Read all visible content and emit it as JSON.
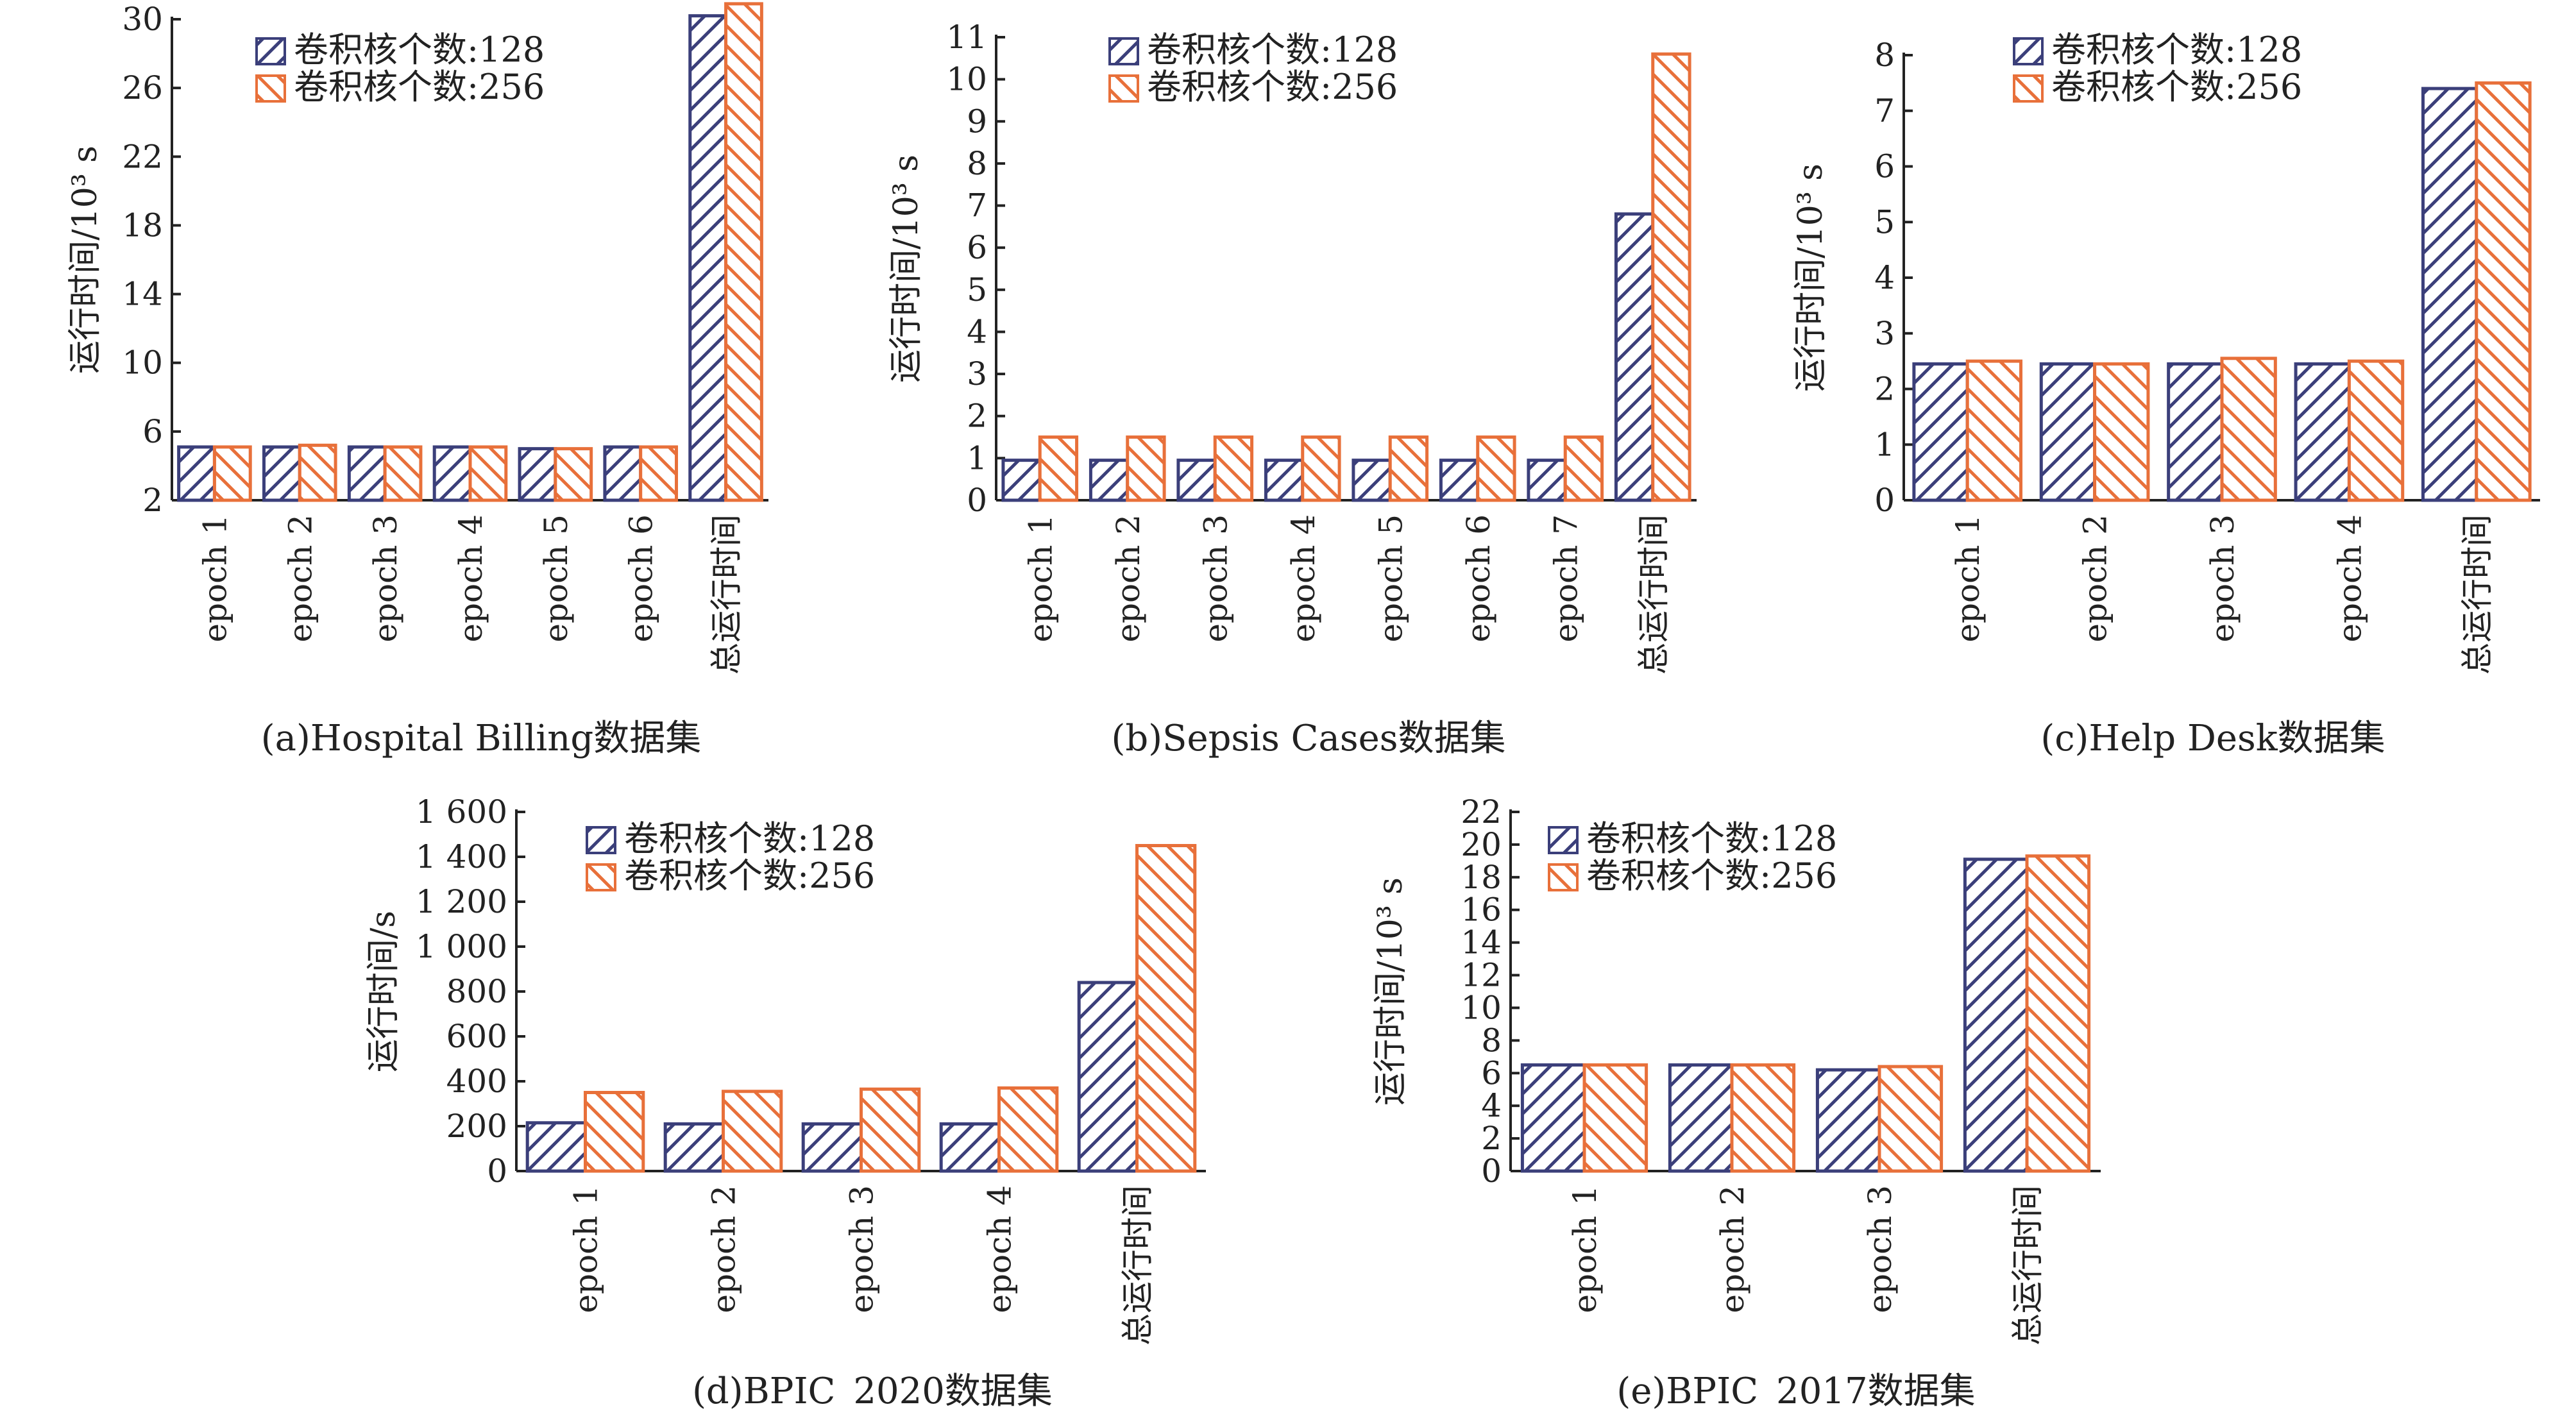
{
  "colors": {
    "series_a": "#3b3f7a",
    "series_b": "#e8703a"
  },
  "chart_data": [
    {
      "type": "bar",
      "caption": "(a)Hospital Billing数据集",
      "ylabel": "运行时间/10³ s",
      "ylim": [
        2,
        30
      ],
      "yticks": [
        2,
        6,
        10,
        14,
        18,
        22,
        26,
        30
      ],
      "ytick_labels": [
        "2",
        "6",
        "10",
        "14",
        "18",
        "22",
        "26",
        "30"
      ],
      "categories": [
        "epoch 1",
        "epoch 2",
        "epoch 3",
        "epoch 4",
        "epoch 5",
        "epoch 6",
        "总运行时间"
      ],
      "series": [
        {
          "name": "卷积核个数:128",
          "values": [
            5.1,
            5.1,
            5.1,
            5.1,
            5.0,
            5.1,
            30.2
          ]
        },
        {
          "name": "卷积核个数:256",
          "values": [
            5.1,
            5.2,
            5.1,
            5.1,
            5.0,
            5.1,
            30.9
          ]
        }
      ],
      "legend": "top-left",
      "grid": false
    },
    {
      "type": "bar",
      "caption": "(b)Sepsis Cases数据集",
      "ylabel": "运行时间/10³ s",
      "ylim": [
        0,
        11
      ],
      "yticks": [
        0,
        1,
        2,
        3,
        4,
        5,
        6,
        7,
        8,
        9,
        10,
        11
      ],
      "ytick_labels": [
        "0",
        "1",
        "2",
        "3",
        "4",
        "5",
        "6",
        "7",
        "8",
        "9",
        "10",
        "11"
      ],
      "categories": [
        "epoch 1",
        "epoch 2",
        "epoch 3",
        "epoch 4",
        "epoch 5",
        "epoch 6",
        "epoch 7",
        "总运行时间"
      ],
      "series": [
        {
          "name": "卷积核个数:128",
          "values": [
            0.95,
            0.95,
            0.95,
            0.95,
            0.95,
            0.95,
            0.95,
            6.8
          ]
        },
        {
          "name": "卷积核个数:256",
          "values": [
            1.5,
            1.5,
            1.5,
            1.5,
            1.5,
            1.5,
            1.5,
            10.6
          ]
        }
      ],
      "legend": "top-center",
      "grid": false
    },
    {
      "type": "bar",
      "caption": "(c)Help Desk数据集",
      "ylabel": "运行时间/10³ s",
      "ylim": [
        0,
        8
      ],
      "yticks": [
        0,
        1,
        2,
        3,
        4,
        5,
        6,
        7,
        8
      ],
      "ytick_labels": [
        "0",
        "1",
        "2",
        "3",
        "4",
        "5",
        "6",
        "7",
        "8"
      ],
      "categories": [
        "epoch 1",
        "epoch 2",
        "epoch 3",
        "epoch 4",
        "总运行时间"
      ],
      "series": [
        {
          "name": "卷积核个数:128",
          "values": [
            2.45,
            2.45,
            2.45,
            2.45,
            7.4
          ]
        },
        {
          "name": "卷积核个数:256",
          "values": [
            2.5,
            2.45,
            2.55,
            2.5,
            7.5
          ]
        }
      ],
      "legend": "top-center",
      "grid": false
    },
    {
      "type": "bar",
      "caption": "(d)BPIC_2020数据集",
      "ylabel": "运行时间/s",
      "ylim": [
        0,
        1600
      ],
      "yticks": [
        0,
        200,
        400,
        600,
        800,
        1000,
        1200,
        1400,
        1600
      ],
      "ytick_labels": [
        "0",
        "200",
        "400",
        "600",
        "800",
        "1 000",
        "1 200",
        "1 400",
        "1 600"
      ],
      "categories": [
        "epoch 1",
        "epoch 2",
        "epoch 3",
        "epoch 4",
        "总运行时间"
      ],
      "series": [
        {
          "name": "卷积核个数:128",
          "values": [
            215,
            210,
            210,
            210,
            840
          ]
        },
        {
          "name": "卷积核个数:256",
          "values": [
            350,
            355,
            365,
            370,
            1450
          ]
        }
      ],
      "legend": "top-center",
      "grid": false
    },
    {
      "type": "bar",
      "caption": "(e)BPIC_2017数据集",
      "ylabel": "运行时间/10³ s",
      "ylim": [
        0,
        22
      ],
      "yticks": [
        0,
        2,
        4,
        6,
        8,
        10,
        12,
        14,
        16,
        18,
        20,
        22
      ],
      "ytick_labels": [
        "0",
        "2",
        "4",
        "6",
        "8",
        "10",
        "12",
        "14",
        "16",
        "18",
        "20",
        "22"
      ],
      "categories": [
        "epoch 1",
        "epoch 2",
        "epoch 3",
        "总运行时间"
      ],
      "series": [
        {
          "name": "卷积核个数:128",
          "values": [
            6.5,
            6.5,
            6.2,
            19.1
          ]
        },
        {
          "name": "卷积核个数:256",
          "values": [
            6.5,
            6.5,
            6.4,
            19.3
          ]
        }
      ],
      "legend": "top-left",
      "grid": false
    }
  ]
}
